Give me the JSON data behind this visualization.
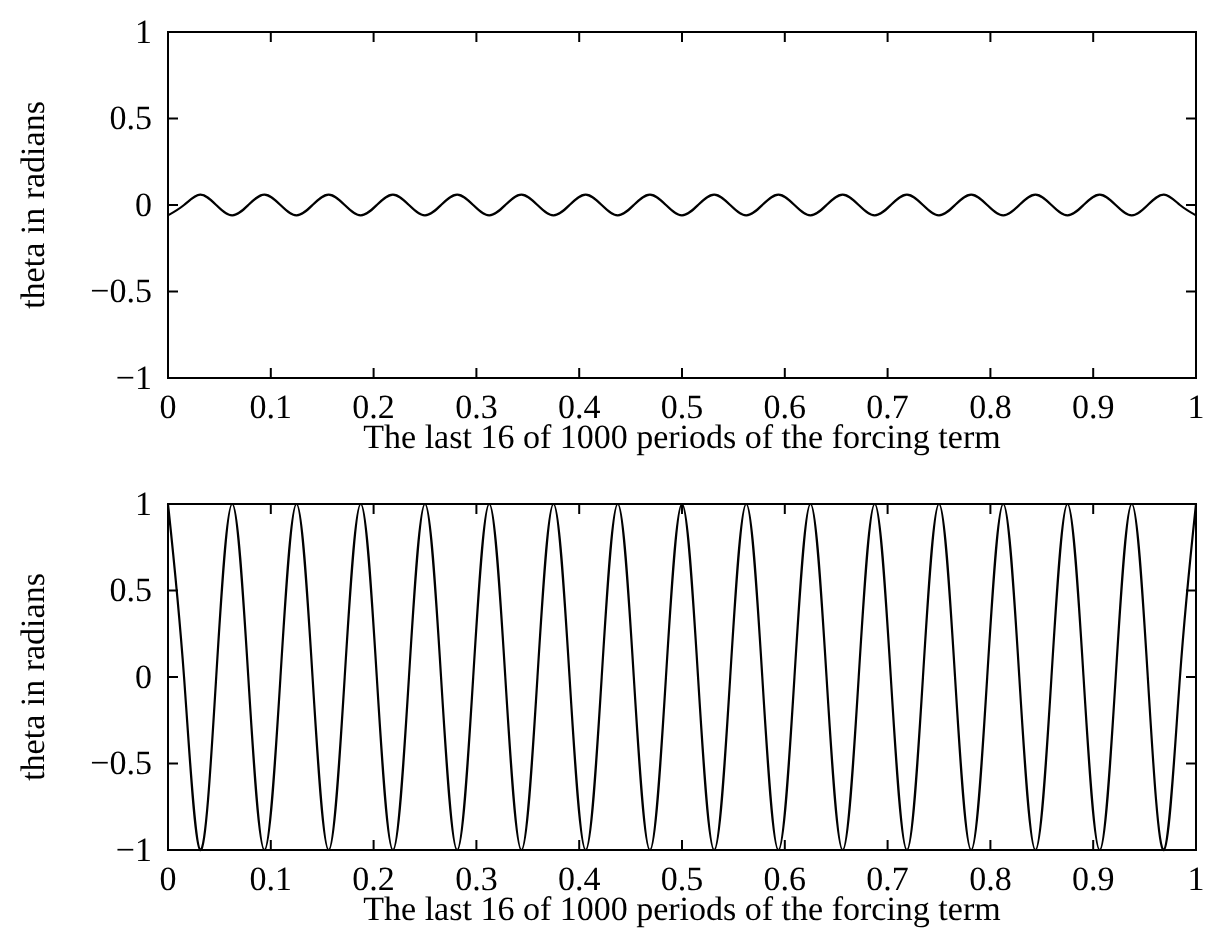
{
  "chart_data": [
    {
      "type": "line",
      "xlabel": "The last 16 of 1000 periods of the forcing term",
      "ylabel": "theta in radians",
      "xlim": [
        0,
        1
      ],
      "ylim": [
        -1,
        1
      ],
      "xticks": [
        0,
        0.1,
        0.2,
        0.3,
        0.4,
        0.5,
        0.6,
        0.7,
        0.8,
        0.9,
        1
      ],
      "yticks": [
        -1,
        -0.5,
        0,
        0.5,
        1
      ],
      "x": [
        0,
        0.0156,
        0.0313,
        0.0469,
        0.0625,
        0.0781,
        0.0938,
        0.1094,
        0.125,
        0.1406,
        0.1563,
        0.1719,
        0.1875,
        0.2031,
        0.2188,
        0.2344,
        0.25,
        0.2656,
        0.2813,
        0.2969,
        0.3125,
        0.3281,
        0.3438,
        0.3594,
        0.375,
        0.3906,
        0.4063,
        0.4219,
        0.4375,
        0.4531,
        0.4688,
        0.4844,
        0.5,
        0.5156,
        0.5313,
        0.5469,
        0.5625,
        0.5781,
        0.5938,
        0.6094,
        0.625,
        0.6406,
        0.6563,
        0.6719,
        0.6875,
        0.7031,
        0.7188,
        0.7344,
        0.75,
        0.7656,
        0.7813,
        0.7969,
        0.8125,
        0.8281,
        0.8438,
        0.8594,
        0.875,
        0.8906,
        0.9063,
        0.9219,
        0.9375,
        0.9531,
        0.9688,
        0.9844,
        1
      ],
      "series": [
        {
          "color": "#000000",
          "values": [
            -0.06,
            0,
            0.06,
            0,
            -0.06,
            0,
            0.06,
            0,
            -0.06,
            0,
            0.06,
            0,
            -0.06,
            0,
            0.06,
            0,
            -0.06,
            0,
            0.06,
            0,
            -0.06,
            0,
            0.06,
            0,
            -0.06,
            0,
            0.06,
            0,
            -0.06,
            0,
            0.06,
            0,
            -0.06,
            0,
            0.06,
            0,
            -0.06,
            0,
            0.06,
            0,
            -0.06,
            0,
            0.06,
            0,
            -0.06,
            0,
            0.06,
            0,
            -0.06,
            0,
            0.06,
            0,
            -0.06,
            0,
            0.06,
            0,
            -0.06,
            0,
            0.06,
            0,
            -0.06,
            0,
            0.06,
            0,
            -0.06
          ]
        }
      ]
    },
    {
      "type": "line",
      "xlabel": "The last 16 of 1000 periods of the forcing term",
      "ylabel": "theta in radians",
      "xlim": [
        0,
        1
      ],
      "ylim": [
        -1,
        1
      ],
      "xticks": [
        0,
        0.1,
        0.2,
        0.3,
        0.4,
        0.5,
        0.6,
        0.7,
        0.8,
        0.9,
        1
      ],
      "yticks": [
        -1,
        -0.5,
        0,
        0.5,
        1
      ],
      "x": [
        0,
        0.0156,
        0.0313,
        0.0469,
        0.0625,
        0.0781,
        0.0938,
        0.1094,
        0.125,
        0.1406,
        0.1563,
        0.1719,
        0.1875,
        0.2031,
        0.2188,
        0.2344,
        0.25,
        0.2656,
        0.2813,
        0.2969,
        0.3125,
        0.3281,
        0.3438,
        0.3594,
        0.375,
        0.3906,
        0.4063,
        0.4219,
        0.4375,
        0.4531,
        0.4688,
        0.4844,
        0.5,
        0.5156,
        0.5313,
        0.5469,
        0.5625,
        0.5781,
        0.5938,
        0.6094,
        0.625,
        0.6406,
        0.6563,
        0.6719,
        0.6875,
        0.7031,
        0.7188,
        0.7344,
        0.75,
        0.7656,
        0.7813,
        0.7969,
        0.8125,
        0.8281,
        0.8438,
        0.8594,
        0.875,
        0.8906,
        0.9063,
        0.9219,
        0.9375,
        0.9531,
        0.9688,
        0.9844,
        1
      ],
      "series": [
        {
          "color": "#000000",
          "values": [
            1,
            0,
            -1,
            0,
            1,
            0,
            -1,
            0,
            1,
            0,
            -1,
            0,
            1,
            0,
            -1,
            0,
            1,
            0,
            -1,
            0,
            1,
            0,
            -1,
            0,
            1,
            0,
            -1,
            0,
            1,
            0,
            -1,
            0,
            1,
            0,
            -1,
            0,
            1,
            0,
            -1,
            0,
            1,
            0,
            -1,
            0,
            1,
            0,
            -1,
            0,
            1,
            0,
            -1,
            0,
            1,
            0,
            -1,
            0,
            1,
            0,
            -1,
            0,
            1,
            0,
            -1,
            0,
            1
          ]
        }
      ]
    }
  ]
}
